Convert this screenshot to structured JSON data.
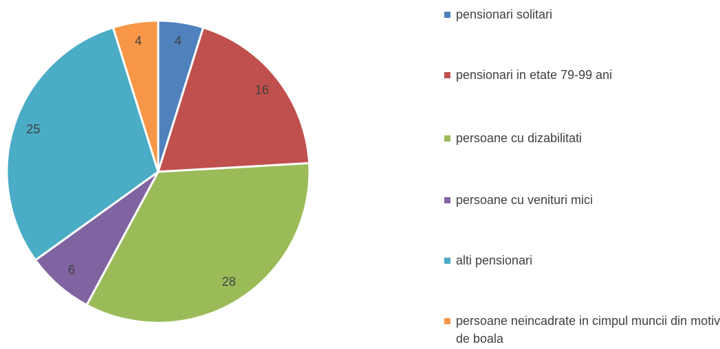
{
  "chart_data": {
    "type": "pie",
    "categories": [
      "pensionari solitari",
      "pensionari in etate 79-99 ani",
      "persoane cu dizabilitati",
      "persoane cu venituri mici",
      "alti pensionari",
      "persoane neincadrate in cimpul muncii din motiv de boala"
    ],
    "values": [
      4,
      16,
      28,
      6,
      25,
      4
    ],
    "colors": [
      "#4f81bd",
      "#c0504d",
      "#9bbb59",
      "#8064a2",
      "#4bacc6",
      "#f79646"
    ],
    "legend": "right"
  }
}
